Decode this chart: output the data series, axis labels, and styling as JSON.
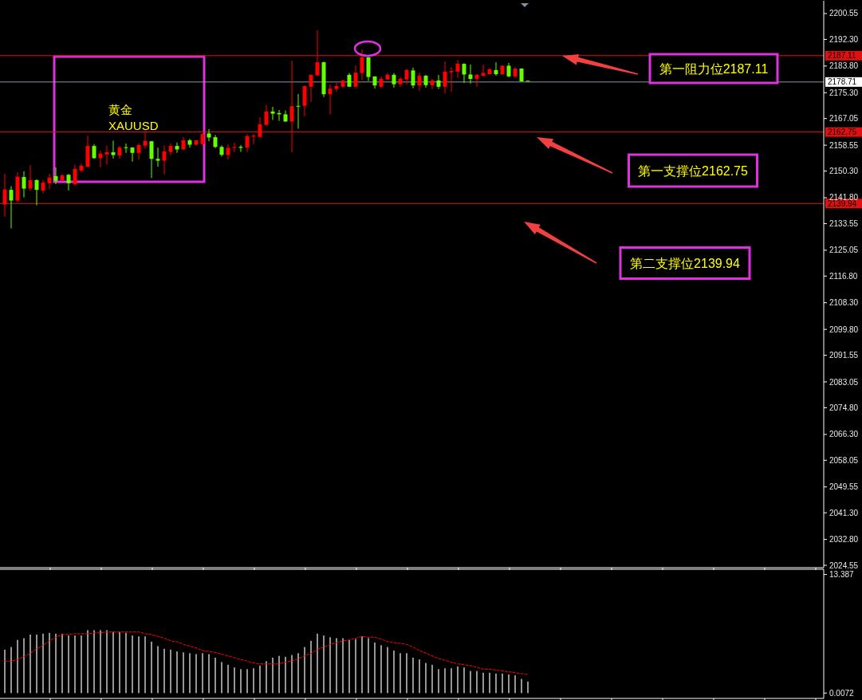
{
  "chart_data": [
    {
      "type": "candlestick",
      "categories": [
        null,
        null,
        null,
        null,
        null,
        null,
        null,
        null,
        null,
        null,
        null,
        null,
        null,
        null,
        null,
        null,
        null,
        null,
        null,
        null,
        null,
        null,
        null,
        null,
        null,
        null,
        null,
        null,
        null,
        null,
        null,
        null,
        null,
        null,
        null,
        null,
        null,
        null,
        null,
        null,
        null,
        null,
        null,
        null,
        null,
        null,
        null,
        null,
        null,
        null,
        null,
        null,
        null,
        null,
        null,
        null,
        null,
        null,
        null,
        null,
        null,
        null,
        null,
        null,
        null,
        null,
        null,
        null,
        null,
        null,
        null,
        null,
        null,
        null,
        null,
        null,
        null,
        null,
        null,
        null,
        null,
        null,
        null,
        null,
        null,
        null,
        null,
        null,
        null,
        null,
        null,
        null,
        null,
        null,
        null,
        null,
        null,
        null,
        null,
        null,
        null,
        null,
        null,
        null,
        null,
        null,
        null,
        null,
        null,
        null,
        null,
        null,
        null,
        null,
        null,
        null,
        null,
        null,
        null,
        null,
        null,
        null,
        null,
        null,
        null,
        null,
        null,
        null,
        null
      ],
      "ohlc": [
        [
          2139.6,
          2149.4,
          2135.8,
          2144.4
        ],
        [
          2144.3,
          2145.5,
          2132.0,
          2140.9
        ],
        [
          2140.9,
          2150.0,
          2140.5,
          2148.5
        ],
        [
          2148.4,
          2150.2,
          2141.9,
          2144.7
        ],
        [
          2144.7,
          2152.2,
          2144.0,
          2147.4
        ],
        [
          2147.4,
          2147.7,
          2139.4,
          2144.3
        ],
        [
          2144.1,
          2147.4,
          2143.2,
          2146.6
        ],
        [
          2146.4,
          2149.4,
          2144.5,
          2148.2
        ],
        [
          2148.7,
          2151.5,
          2146.1,
          2147.2
        ],
        [
          2147.4,
          2149.4,
          2147.1,
          2148.9
        ],
        [
          2149.1,
          2149.4,
          2144.1,
          2146.4
        ],
        [
          2146.1,
          2152.3,
          2145.7,
          2151.0
        ],
        [
          2150.5,
          2152.7,
          2149.8,
          2152.0
        ],
        [
          2151.7,
          2161.6,
          2151.6,
          2158.3
        ],
        [
          2158.3,
          2158.9,
          2154.3,
          2154.4
        ],
        [
          2154.4,
          2156.8,
          2151.5,
          2155.8
        ],
        [
          2155.6,
          2158.4,
          2152.3,
          2156.3
        ],
        [
          2156.3,
          2160.0,
          2154.3,
          2155.4
        ],
        [
          2155.3,
          2158.3,
          2154.3,
          2157.8
        ],
        [
          2157.9,
          2159.1,
          2156.1,
          2157.7
        ],
        [
          2157.8,
          2157.9,
          2153.3,
          2156.1
        ],
        [
          2156.1,
          2159.1,
          2154.0,
          2158.6
        ],
        [
          2158.4,
          2163.3,
          2157.4,
          2159.9
        ],
        [
          2159.8,
          2159.9,
          2148.1,
          2154.2
        ],
        [
          2154.2,
          2157.8,
          2151.7,
          2153.6
        ],
        [
          2153.6,
          2158.5,
          2149.2,
          2156.6
        ],
        [
          2156.4,
          2159.1,
          2155.3,
          2158.3
        ],
        [
          2158.3,
          2159.4,
          2156.1,
          2157.2
        ],
        [
          2157.2,
          2161.1,
          2157.1,
          2160.1
        ],
        [
          2160.1,
          2160.6,
          2157.8,
          2158.7
        ],
        [
          2158.7,
          2160.2,
          2158.4,
          2160.1
        ],
        [
          2158.9,
          2162.3,
          2158.7,
          2162.1
        ],
        [
          2162.3,
          2163.7,
          2159.8,
          2161.0
        ],
        [
          2161.1,
          2161.8,
          2157.6,
          2158.0
        ],
        [
          2158.0,
          2158.5,
          2154.9,
          2155.5
        ],
        [
          2155.4,
          2158.9,
          2154.0,
          2157.7
        ],
        [
          2157.7,
          2159.3,
          2156.3,
          2158.0
        ],
        [
          2158.0,
          2158.6,
          2156.4,
          2157.7
        ],
        [
          2157.8,
          2162.1,
          2156.4,
          2161.4
        ],
        [
          2161.3,
          2162.2,
          2158.9,
          2161.6
        ],
        [
          2161.2,
          2167.5,
          2161.2,
          2165.2
        ],
        [
          2165.0,
          2171.4,
          2164.8,
          2169.3
        ],
        [
          2169.3,
          2170.8,
          2166.6,
          2168.6
        ],
        [
          2168.8,
          2169.8,
          2166.3,
          2168.4
        ],
        [
          2168.4,
          2169.6,
          2166.0,
          2166.1
        ],
        [
          2166.1,
          2185.5,
          2156.3,
          2171.0
        ],
        [
          2171.1,
          2174.9,
          2163.8,
          2170.9
        ],
        [
          2171.1,
          2177.6,
          2167.8,
          2177.4
        ],
        [
          2177.2,
          2181.1,
          2172.4,
          2181.0
        ],
        [
          2180.8,
          2195.2,
          2180.7,
          2185.0
        ],
        [
          2185.0,
          2185.2,
          2173.9,
          2174.8
        ],
        [
          2174.8,
          2177.9,
          2168.4,
          2176.6
        ],
        [
          2176.5,
          2178.4,
          2175.6,
          2177.4
        ],
        [
          2177.2,
          2179.3,
          2176.9,
          2179.2
        ],
        [
          2181.0,
          2181.6,
          2177.2,
          2177.2
        ],
        [
          2177.2,
          2184.0,
          2177.2,
          2181.7
        ],
        [
          2181.6,
          2189.1,
          2179.4,
          2186.6
        ],
        [
          2186.6,
          2186.7,
          2179.0,
          2180.3
        ],
        [
          2180.5,
          2180.5,
          2176.6,
          2177.6
        ],
        [
          2177.2,
          2180.5,
          2176.9,
          2179.7
        ],
        [
          2179.5,
          2181.6,
          2179.4,
          2181.0
        ],
        [
          2181.0,
          2181.6,
          2176.9,
          2178.0
        ],
        [
          2178.0,
          2180.3,
          2177.2,
          2179.7
        ],
        [
          2179.5,
          2183.0,
          2177.9,
          2182.5
        ],
        [
          2182.4,
          2183.3,
          2176.7,
          2177.6
        ],
        [
          2177.6,
          2181.7,
          2175.9,
          2180.7
        ],
        [
          2180.7,
          2181.0,
          2176.9,
          2177.7
        ],
        [
          2177.7,
          2179.7,
          2176.5,
          2179.2
        ],
        [
          2179.2,
          2181.0,
          2176.5,
          2177.2
        ],
        [
          2177.2,
          2185.3,
          2175.0,
          2182.0
        ],
        [
          2181.8,
          2183.5,
          2175.6,
          2182.2
        ],
        [
          2182.0,
          2185.7,
          2180.0,
          2184.5
        ],
        [
          2184.5,
          2184.7,
          2178.4,
          2181.1
        ],
        [
          2181.1,
          2184.3,
          2178.2,
          2179.7
        ],
        [
          2179.7,
          2181.3,
          2177.2,
          2181.0
        ],
        [
          2180.7,
          2184.3,
          2180.5,
          2181.6
        ],
        [
          2181.2,
          2183.1,
          2181.1,
          2182.8
        ],
        [
          2182.5,
          2185.0,
          2180.7,
          2181.2
        ],
        [
          2181.2,
          2184.1,
          2181.1,
          2183.9
        ],
        [
          2183.9,
          2184.8,
          2180.2,
          2180.5
        ],
        [
          2180.5,
          2183.3,
          2180.0,
          2183.0
        ],
        [
          2183.0,
          2183.1,
          2178.8,
          2178.9
        ],
        [
          2179.1,
          2179.1,
          2178.9,
          2178.9
        ],
        null,
        null,
        null,
        null,
        null,
        null,
        null,
        null,
        null,
        null,
        null,
        null,
        null,
        null,
        null,
        null,
        null,
        null,
        null,
        null,
        null,
        null,
        null,
        null,
        null,
        null,
        null,
        null,
        null,
        null,
        null,
        null,
        null,
        null,
        null,
        null,
        null,
        null,
        null,
        null,
        null,
        null,
        null,
        null,
        null,
        null
      ],
      "colors": [
        "#ff0000",
        "#66ff00",
        "#ff0000",
        "#66ff00",
        "#ff0000",
        "#66ff00",
        "#ff0000",
        "#ff0000",
        "#66ff00",
        "#ff0000",
        "#66ff00",
        "#ff0000",
        "#ff0000",
        "#ff0000",
        "#66ff00",
        "#ff0000",
        "#ff0000",
        "#66ff00",
        "#ff0000",
        "#66ff00",
        "#66ff00",
        "#ff0000",
        "#ff0000",
        "#66ff00",
        "#66ff00",
        "#ff0000",
        "#ff0000",
        "#66ff00",
        "#ff0000",
        "#66ff00",
        "#ff0000",
        "#ff0000",
        "#66ff00",
        "#66ff00",
        "#66ff00",
        "#ff0000",
        "#ff0000",
        "#66ff00",
        "#ff0000",
        "#ff0000",
        "#ff0000",
        "#ff0000",
        "#66ff00",
        "#66ff00",
        "#66ff00",
        "#ff0000",
        "#66ff00",
        "#ff0000",
        "#ff0000",
        "#ff0000",
        "#66ff00",
        "#ff0000",
        "#ff0000",
        "#ff0000",
        "#66ff00",
        "#ff0000",
        "#ff0000",
        "#66ff00",
        "#66ff00",
        "#ff0000",
        "#ff0000",
        "#66ff00",
        "#ff0000",
        "#ff0000",
        "#66ff00",
        "#ff0000",
        "#66ff00",
        "#ff0000",
        "#66ff00",
        "#ff0000",
        "#ff0000",
        "#ff0000",
        "#66ff00",
        "#66ff00",
        "#ff0000",
        "#ff0000",
        "#ff0000",
        "#66ff00",
        "#ff0000",
        "#66ff00",
        "#ff0000",
        "#66ff00",
        "#66ff00",
        null,
        null,
        null,
        null,
        null,
        null,
        null,
        null,
        null,
        null,
        null,
        null,
        null,
        null,
        null,
        null,
        null,
        null,
        null,
        null,
        null,
        null,
        null,
        null,
        null,
        null,
        null,
        null,
        null,
        null,
        null,
        null,
        null,
        null,
        null,
        null,
        null,
        null,
        null,
        null,
        null,
        null,
        null,
        null,
        null,
        null
      ],
      "ylim": [
        2023.8,
        2204.1
      ],
      "yticks": [
        2200.55,
        {
          "value": 2192.3,
          "label": "2192.30"
        },
        {
          "value": 2183.8,
          "label": "2183.80"
        },
        {
          "value": 2175.3,
          "label": "2175.30"
        },
        2167.05,
        2158.55,
        {
          "value": 2150.3,
          "label": "2150.30"
        },
        {
          "value": 2141.8,
          "label": "2141.80"
        },
        2133.55,
        2125.05,
        {
          "value": 2116.8,
          "label": "2116.80"
        },
        {
          "value": 2108.3,
          "label": "2108.30"
        },
        {
          "value": 2099.8,
          "label": "2099.80"
        },
        2091.55,
        2083.05,
        {
          "value": 2074.8,
          "label": "2074.80"
        },
        {
          "value": 2066.3,
          "label": "2066.30"
        },
        2058.05,
        2049.55,
        {
          "value": 2041.3,
          "label": "2041.30"
        },
        {
          "value": 2032.8,
          "label": "2032.80"
        },
        2024.55
      ],
      "tick_labels": "y",
      "ref_lines": [
        {
          "axis": "y",
          "value": 2187.11,
          "label": "2187.11",
          "color": "#e01010"
        },
        {
          "axis": "y",
          "value": 2178.71,
          "label": "2178.71",
          "color": "#8c96a6"
        },
        {
          "axis": "y",
          "value": 2162.75,
          "label": "2162.75",
          "color": "#e01010"
        },
        {
          "axis": "y",
          "value": 2139.94,
          "label": "2139.94",
          "color": "#e01010"
        }
      ],
      "annotations": [
        "黄金",
        "XAUUSD",
        "第一阻力位2187.11",
        "第一支撑位2162.75",
        "第二支撑位2139.94"
      ]
    },
    {
      "type": "bar",
      "categories": [
        null,
        null,
        null,
        null,
        null,
        null,
        null,
        null,
        null,
        null,
        null,
        null,
        null,
        null,
        null,
        null,
        null,
        null,
        null,
        null,
        null,
        null,
        null,
        null,
        null,
        null,
        null,
        null,
        null,
        null,
        null,
        null,
        null,
        null,
        null,
        null,
        null,
        null,
        null,
        null,
        null,
        null,
        null,
        null,
        null,
        null,
        null,
        null,
        null,
        null,
        null,
        null,
        null,
        null,
        null,
        null,
        null,
        null,
        null,
        null,
        null,
        null,
        null,
        null,
        null,
        null,
        null,
        null,
        null,
        null,
        null,
        null,
        null,
        null,
        null,
        null,
        null,
        null,
        null,
        null,
        null,
        null,
        null,
        null,
        null,
        null,
        null,
        null,
        null,
        null,
        null,
        null,
        null,
        null,
        null,
        null,
        null,
        null,
        null,
        null,
        null,
        null,
        null,
        null,
        null,
        null,
        null,
        null,
        null,
        null,
        null,
        null,
        null,
        null,
        null,
        null,
        null,
        null,
        null,
        null,
        null,
        null,
        null,
        null,
        null,
        null,
        null,
        null,
        null
      ],
      "series": [
        {
          "type": "bar",
          "color": "#c8c8c8",
          "values": [
            4.9,
            5.2,
            6.0,
            6.2,
            6.6,
            6.6,
            6.7,
            6.8,
            6.7,
            6.7,
            6.5,
            6.5,
            6.5,
            7.1,
            7.1,
            7.1,
            7.1,
            6.9,
            6.9,
            6.8,
            6.5,
            6.4,
            6.4,
            5.8,
            5.3,
            5.0,
            4.9,
            4.7,
            4.6,
            4.5,
            4.4,
            4.5,
            4.4,
            4.0,
            3.5,
            3.2,
            2.9,
            2.7,
            2.7,
            2.8,
            3.1,
            3.6,
            4.0,
            4.2,
            4.1,
            4.3,
            4.5,
            5.2,
            5.9,
            6.7,
            6.5,
            6.3,
            6.2,
            6.2,
            6.0,
            6.1,
            6.4,
            6.2,
            5.7,
            5.4,
            5.2,
            4.8,
            4.5,
            4.5,
            4.0,
            3.8,
            3.4,
            3.2,
            2.7,
            2.8,
            2.8,
            3.0,
            2.9,
            2.5,
            2.5,
            2.3,
            2.3,
            2.2,
            2.2,
            2.1,
            2.0,
            1.6,
            1.3,
            null,
            null,
            null,
            null,
            null,
            null,
            null,
            null,
            null,
            null,
            null,
            null,
            null,
            null,
            null,
            null,
            null,
            null,
            null,
            null,
            null,
            null,
            null,
            null,
            null,
            null,
            null,
            null,
            null,
            null,
            null,
            null,
            null,
            null,
            null,
            null,
            null,
            null,
            null,
            null,
            null,
            null,
            null,
            null,
            null,
            null
          ]
        },
        {
          "type": "line",
          "color": "#ff0000",
          "line_style": "dashed",
          "values": [
            3.6,
            3.6,
            3.8,
            4.1,
            4.5,
            5.0,
            5.4,
            5.9,
            6.3,
            6.6,
            6.6,
            6.7,
            6.7,
            6.7,
            6.8,
            6.8,
            6.9,
            6.9,
            6.9,
            6.9,
            6.9,
            6.9,
            6.7,
            6.6,
            6.4,
            6.2,
            5.9,
            5.8,
            5.5,
            5.3,
            5.1,
            4.8,
            4.7,
            4.6,
            4.4,
            4.2,
            4.0,
            3.8,
            3.6,
            3.4,
            3.3,
            3.3,
            3.3,
            3.3,
            3.5,
            3.6,
            3.9,
            4.2,
            4.5,
            4.9,
            5.2,
            5.5,
            5.7,
            5.9,
            6.0,
            6.2,
            6.4,
            6.3,
            6.3,
            6.1,
            5.8,
            5.7,
            5.6,
            5.5,
            5.2,
            4.8,
            4.5,
            4.2,
            3.9,
            3.7,
            3.5,
            3.3,
            3.2,
            3.1,
            2.9,
            2.7,
            2.7,
            2.6,
            2.5,
            2.4,
            2.3,
            2.2,
            2.1,
            null,
            null,
            null,
            null,
            null,
            null,
            null,
            null,
            null,
            null,
            null,
            null,
            null,
            null,
            null,
            null,
            null,
            null,
            null,
            null,
            null,
            null,
            null,
            null,
            null,
            null,
            null,
            null,
            null,
            null,
            null,
            null,
            null,
            null,
            null,
            null,
            null,
            null,
            null,
            null,
            null,
            null,
            null,
            null,
            null,
            null
          ]
        }
      ],
      "ylim": [
        -0.6,
        13.8
      ],
      "yticks": [
        13.387,
        0.0072
      ],
      "tick_labels": "y"
    }
  ]
}
